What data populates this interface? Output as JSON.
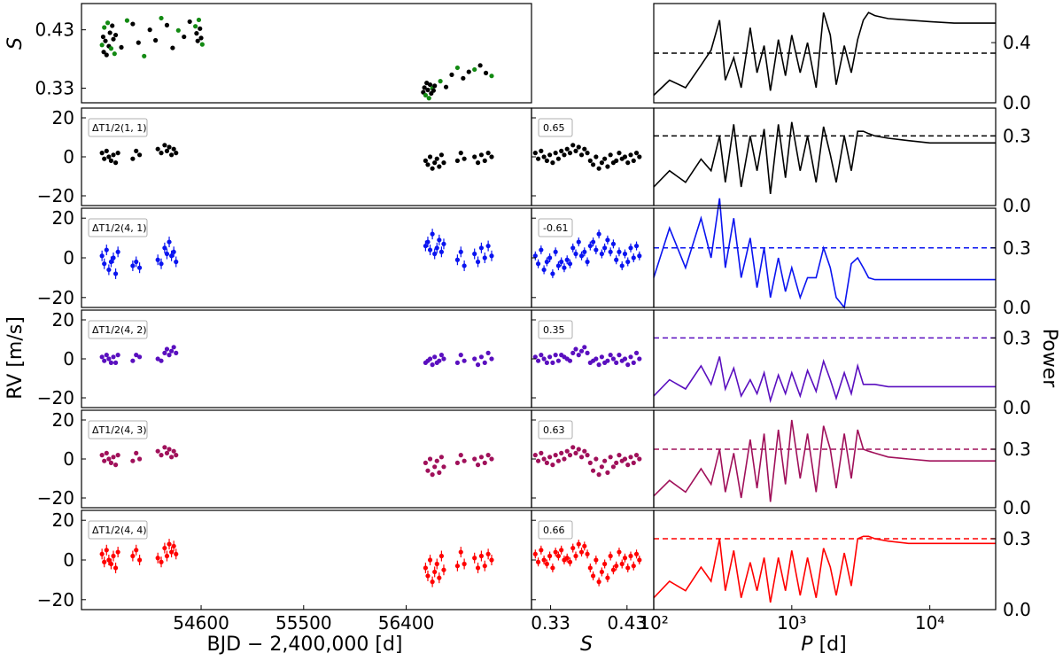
{
  "labels": {
    "s_axis_top": "S",
    "rv_axis": "RV [m/s]",
    "power_axis": "Power",
    "x_time": "BJD − 2,400,000 [d]",
    "x_s": "S",
    "x_period": "P [d]"
  },
  "colors": {
    "row1": "#000000",
    "row2": "#0a14f0",
    "row3": "#5a0fbf",
    "row4": "#a0105a",
    "row5": "#ff0000",
    "s_alt": "#138a13"
  },
  "chart_data": [
    {
      "id": "s_time",
      "type": "scatter",
      "x": [
        53730,
        53740,
        53745,
        53750,
        53760,
        53770,
        53780,
        53790,
        53800,
        53810,
        53820,
        53830,
        53840,
        53850,
        53900,
        53950,
        54000,
        54050,
        54100,
        54150,
        54200,
        54250,
        54300,
        54350,
        54400,
        54450,
        54500,
        54550,
        54560,
        54570,
        54580,
        54590,
        54600,
        54610,
        56550,
        56560,
        56570,
        56580,
        56590,
        56600,
        56610,
        56620,
        56630,
        56640,
        56650,
        56700,
        56750,
        56800,
        56850,
        56900,
        56950,
        57000,
        57050,
        57100,
        57150
      ],
      "y": [
        0.404,
        0.418,
        0.392,
        0.434,
        0.411,
        0.387,
        0.442,
        0.402,
        0.425,
        0.398,
        0.437,
        0.414,
        0.389,
        0.421,
        0.4,
        0.446,
        0.44,
        0.408,
        0.385,
        0.43,
        0.412,
        0.45,
        0.438,
        0.399,
        0.429,
        0.418,
        0.444,
        0.436,
        0.424,
        0.411,
        0.447,
        0.432,
        0.416,
        0.405,
        0.323,
        0.331,
        0.318,
        0.339,
        0.327,
        0.313,
        0.336,
        0.321,
        0.33,
        0.326,
        0.334,
        0.342,
        0.332,
        0.353,
        0.365,
        0.347,
        0.358,
        0.362,
        0.369,
        0.356,
        0.351
      ],
      "xlim": [
        53550,
        57500
      ],
      "ylim": [
        0.305,
        0.475
      ],
      "yticks": [
        0.33,
        0.43
      ],
      "ytick_labels": [
        "0.33",
        "0.43"
      ],
      "ylabel": "S"
    },
    {
      "id": "rv_time",
      "type": "scatter",
      "x": [
        53730,
        53750,
        53770,
        53790,
        53810,
        53830,
        53850,
        53870,
        54000,
        54030,
        54060,
        54220,
        54250,
        54280,
        54300,
        54320,
        54340,
        54360,
        54380,
        56570,
        56590,
        56610,
        56630,
        56650,
        56670,
        56690,
        56710,
        56730,
        56850,
        56880,
        56910,
        57000,
        57030,
        57060,
        57090,
        57120,
        57150
      ],
      "rows": [
        {
          "label": "ΔT1/2(1, 1)",
          "corr": "0.65",
          "y": [
            2,
            -1,
            3,
            0,
            -2,
            1,
            -3,
            2,
            -1,
            3,
            1,
            4,
            2,
            6,
            3,
            5,
            1,
            4,
            2,
            -2,
            -4,
            0,
            -6,
            -3,
            -1,
            -5,
            1,
            -3,
            -2,
            2,
            -1,
            0,
            -3,
            1,
            -2,
            2,
            0
          ]
        },
        {
          "label": "ΔT1/2(4, 1)",
          "corr": "-0.61",
          "y": [
            1,
            -3,
            4,
            -6,
            -2,
            0,
            -8,
            3,
            -4,
            -2,
            -5,
            -1,
            -3,
            5,
            2,
            8,
            1,
            3,
            -2,
            6,
            8,
            4,
            12,
            2,
            5,
            9,
            3,
            7,
            -1,
            3,
            -4,
            2,
            -2,
            5,
            0,
            6,
            1
          ]
        },
        {
          "label": "ΔT1/2(4, 2)",
          "corr": "0.35",
          "y": [
            1,
            -1,
            2,
            0,
            -2,
            1,
            -2,
            2,
            -1,
            2,
            1,
            0,
            -1,
            3,
            5,
            2,
            4,
            6,
            3,
            -2,
            -1,
            0,
            -3,
            1,
            -2,
            -1,
            2,
            0,
            -2,
            2,
            -1,
            0,
            -3,
            1,
            -2,
            3,
            0
          ]
        },
        {
          "label": "ΔT1/2(4, 3)",
          "corr": "0.63",
          "y": [
            2,
            -1,
            3,
            0,
            -2,
            1,
            -3,
            2,
            -1,
            3,
            0,
            4,
            2,
            6,
            3,
            5,
            1,
            4,
            2,
            -2,
            -6,
            0,
            -8,
            -4,
            -1,
            -7,
            1,
            -4,
            -2,
            2,
            -1,
            0,
            -3,
            1,
            -2,
            2,
            0
          ]
        },
        {
          "label": "ΔT1/2(4, 4)",
          "corr": "0.66",
          "y": [
            3,
            -1,
            5,
            0,
            -2,
            2,
            -4,
            4,
            2,
            5,
            0,
            1,
            -1,
            6,
            2,
            8,
            4,
            7,
            3,
            -4,
            -8,
            0,
            -11,
            -6,
            -2,
            -9,
            2,
            -5,
            -3,
            4,
            -2,
            1,
            -4,
            2,
            -3,
            3,
            0
          ]
        }
      ],
      "xlim": [
        53550,
        57500
      ],
      "xticks": [
        54600,
        55500,
        56400
      ],
      "xtick_labels": [
        "54600",
        "55500",
        "56400"
      ],
      "ylim": [
        -25,
        25
      ],
      "yticks": [
        -20,
        0,
        20
      ],
      "ytick_labels": [
        "−20",
        "0",
        "20"
      ],
      "xlabel": "BJD − 2,400,000 [d]",
      "ylabel": "RV [m/s]"
    },
    {
      "id": "rv_vs_s",
      "type": "scatter",
      "xlim": [
        0.305,
        0.465
      ],
      "xticks": [
        0.33,
        0.43
      ],
      "xtick_labels": [
        "0.33",
        "0.43"
      ],
      "xlabel": "S"
    },
    {
      "id": "periodograms",
      "type": "line",
      "scale": "log",
      "xlim": [
        100,
        30000
      ],
      "xticks": [
        100,
        1000,
        10000
      ],
      "xtick_labels": [
        "10²",
        "10³",
        "10⁴"
      ],
      "xlabel": "P [d]",
      "ylabel": "Power",
      "series": [
        {
          "x": [
            100,
            130,
            170,
            220,
            260,
            300,
            330,
            380,
            430,
            500,
            560,
            630,
            700,
            800,
            900,
            1000,
            1150,
            1300,
            1500,
            1700,
            1900,
            2100,
            2400,
            2700,
            3000,
            3300,
            3600,
            4000,
            5000,
            7000,
            10000,
            15000,
            20000,
            30000
          ],
          "y": [
            0.05,
            0.15,
            0.1,
            0.25,
            0.35,
            0.55,
            0.15,
            0.3,
            0.1,
            0.5,
            0.2,
            0.38,
            0.08,
            0.42,
            0.18,
            0.45,
            0.2,
            0.4,
            0.1,
            0.6,
            0.45,
            0.12,
            0.38,
            0.2,
            0.42,
            0.55,
            0.6,
            0.58,
            0.56,
            0.55,
            0.54,
            0.53,
            0.53,
            0.53
          ],
          "threshold": 0.33,
          "ylim": [
            0,
            0.66
          ],
          "yticks": [
            0,
            0.4
          ],
          "ytick_labels": [
            "0.0",
            "0.4"
          ]
        },
        {
          "x": [
            100,
            130,
            170,
            220,
            260,
            300,
            330,
            380,
            430,
            500,
            560,
            630,
            700,
            800,
            900,
            1000,
            1150,
            1300,
            1500,
            1700,
            1900,
            2100,
            2400,
            2700,
            3000,
            3300,
            3600,
            4000,
            5000,
            7000,
            10000,
            15000,
            20000,
            30000
          ],
          "y": [
            0.08,
            0.15,
            0.1,
            0.2,
            0.15,
            0.3,
            0.1,
            0.35,
            0.08,
            0.3,
            0.15,
            0.33,
            0.05,
            0.35,
            0.12,
            0.36,
            0.15,
            0.3,
            0.1,
            0.34,
            0.22,
            0.1,
            0.3,
            0.15,
            0.32,
            0.32,
            0.31,
            0.3,
            0.29,
            0.28,
            0.27,
            0.27,
            0.27,
            0.27
          ],
          "threshold": 0.3,
          "ylim": [
            0,
            0.42
          ],
          "yticks": [
            0,
            0.3
          ],
          "ytick_labels": [
            "0.0",
            "0.3"
          ]
        },
        {
          "x": [
            100,
            130,
            170,
            220,
            260,
            300,
            330,
            380,
            430,
            500,
            560,
            630,
            700,
            800,
            900,
            1000,
            1150,
            1300,
            1500,
            1700,
            1900,
            2100,
            2400,
            2700,
            3000,
            3300,
            3600,
            4000,
            5000,
            7000,
            10000,
            15000,
            20000,
            30000
          ],
          "y": [
            0.15,
            0.4,
            0.2,
            0.45,
            0.25,
            0.55,
            0.2,
            0.45,
            0.15,
            0.35,
            0.1,
            0.3,
            0.05,
            0.25,
            0.08,
            0.2,
            0.05,
            0.15,
            0.15,
            0.3,
            0.2,
            0.05,
            0.0,
            0.22,
            0.25,
            0.2,
            0.15,
            0.14,
            0.14,
            0.14,
            0.14,
            0.14,
            0.14,
            0.14
          ],
          "threshold": 0.3,
          "ylim": [
            0,
            0.5
          ],
          "yticks": [
            0,
            0.3
          ],
          "ytick_labels": [
            "0.0",
            "0.3"
          ]
        },
        {
          "x": [
            100,
            130,
            170,
            220,
            260,
            300,
            330,
            380,
            430,
            500,
            560,
            630,
            700,
            800,
            900,
            1000,
            1150,
            1300,
            1500,
            1700,
            1900,
            2100,
            2400,
            2700,
            3000,
            3300,
            3600,
            4000,
            5000,
            7000,
            10000,
            15000,
            20000,
            30000
          ],
          "y": [
            0.05,
            0.12,
            0.08,
            0.18,
            0.1,
            0.22,
            0.08,
            0.17,
            0.05,
            0.12,
            0.06,
            0.15,
            0.03,
            0.14,
            0.06,
            0.15,
            0.05,
            0.16,
            0.07,
            0.2,
            0.12,
            0.04,
            0.15,
            0.06,
            0.18,
            0.1,
            0.1,
            0.1,
            0.09,
            0.09,
            0.09,
            0.09,
            0.09,
            0.09
          ],
          "threshold": 0.3,
          "ylim": [
            0,
            0.42
          ],
          "yticks": [
            0,
            0.3
          ],
          "ytick_labels": [
            "0.0",
            "0.3"
          ]
        },
        {
          "x": [
            100,
            130,
            170,
            220,
            260,
            300,
            330,
            380,
            430,
            500,
            560,
            630,
            700,
            800,
            900,
            1000,
            1150,
            1300,
            1500,
            1700,
            1900,
            2100,
            2400,
            2700,
            3000,
            3300,
            3600,
            4000,
            5000,
            7000,
            10000,
            15000,
            20000,
            30000
          ],
          "y": [
            0.06,
            0.14,
            0.08,
            0.2,
            0.12,
            0.3,
            0.08,
            0.28,
            0.05,
            0.35,
            0.1,
            0.38,
            0.03,
            0.4,
            0.12,
            0.45,
            0.15,
            0.38,
            0.08,
            0.42,
            0.3,
            0.1,
            0.38,
            0.15,
            0.4,
            0.3,
            0.29,
            0.28,
            0.26,
            0.25,
            0.24,
            0.24,
            0.24,
            0.24
          ],
          "threshold": 0.3,
          "ylim": [
            0,
            0.5
          ],
          "yticks": [
            0,
            0.3
          ],
          "ytick_labels": [
            "0.0",
            "0.3"
          ]
        },
        {
          "x": [
            100,
            130,
            170,
            220,
            260,
            300,
            330,
            380,
            430,
            500,
            560,
            630,
            700,
            800,
            900,
            1000,
            1150,
            1300,
            1500,
            1700,
            1900,
            2100,
            2400,
            2700,
            3000,
            3300,
            3600,
            4000,
            5000,
            7000,
            10000,
            15000,
            20000,
            30000
          ],
          "y": [
            0.05,
            0.12,
            0.08,
            0.18,
            0.12,
            0.3,
            0.08,
            0.25,
            0.05,
            0.2,
            0.08,
            0.22,
            0.03,
            0.22,
            0.08,
            0.25,
            0.06,
            0.22,
            0.05,
            0.26,
            0.18,
            0.06,
            0.24,
            0.1,
            0.3,
            0.31,
            0.31,
            0.3,
            0.29,
            0.28,
            0.28,
            0.28,
            0.28,
            0.28
          ],
          "threshold": 0.3,
          "ylim": [
            0,
            0.42
          ],
          "yticks": [
            0,
            0.3
          ],
          "ytick_labels": [
            "0.0",
            "0.3"
          ]
        }
      ]
    }
  ]
}
